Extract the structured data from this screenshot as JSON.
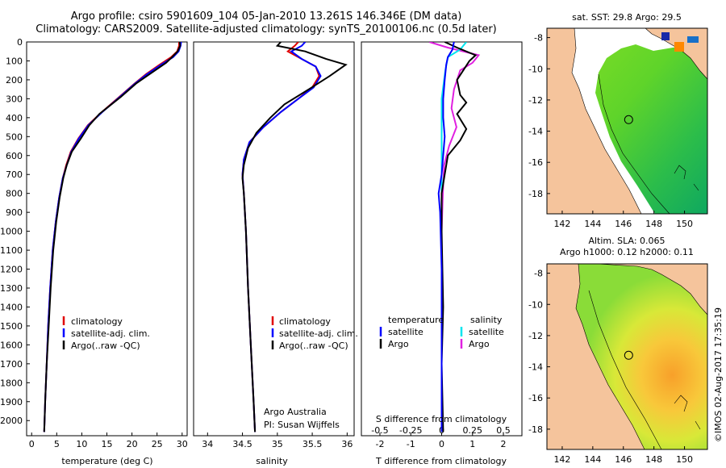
{
  "header": {
    "line1": "Argo profile: csiro 5901609_104 05-Jan-2010 13.261S 146.346E (DM data)",
    "line2": "Climatology: CARS2009. Satellite-adjusted climatology: synTS_20100106.nc (0.5d later)"
  },
  "colors": {
    "clim": "#e00000",
    "sat": "#0000ff",
    "argo": "#000000",
    "sal_sat": "#00e5ee",
    "sal_argo": "#e020e0",
    "land": "#f5c49c"
  },
  "depth_axis": {
    "ticks": [
      0,
      100,
      200,
      300,
      400,
      500,
      600,
      700,
      800,
      900,
      1000,
      1100,
      1200,
      1300,
      1400,
      1500,
      1600,
      1700,
      1800,
      1900,
      2000
    ]
  },
  "chart_data": [
    {
      "type": "line",
      "name": "temperature",
      "xlabel": "temperature (deg C)",
      "xlim": [
        -1,
        31
      ],
      "ylim": [
        0,
        2080
      ],
      "xticks": [
        0,
        5,
        10,
        15,
        20,
        25,
        30
      ],
      "legend": [
        "climatology",
        "satellite-adj. clim.",
        "Argo(..raw -QC)"
      ],
      "series": [
        {
          "name": "climatology",
          "points": [
            [
              29.4,
              0
            ],
            [
              29.4,
              20
            ],
            [
              29.0,
              50
            ],
            [
              27.8,
              80
            ],
            [
              25.5,
              120
            ],
            [
              22.8,
              170
            ],
            [
              20.5,
              220
            ],
            [
              17.5,
              290
            ],
            [
              14.0,
              370
            ],
            [
              11.2,
              440
            ],
            [
              9.3,
              510
            ],
            [
              7.8,
              580
            ],
            [
              6.9,
              650
            ],
            [
              6.2,
              720
            ],
            [
              5.5,
              820
            ],
            [
              4.8,
              950
            ],
            [
              4.2,
              1100
            ],
            [
              3.7,
              1300
            ],
            [
              3.3,
              1500
            ],
            [
              3.0,
              1700
            ],
            [
              2.7,
              1900
            ],
            [
              2.5,
              2060
            ]
          ]
        },
        {
          "name": "satellite-adj. clim.",
          "points": [
            [
              29.8,
              0
            ],
            [
              29.7,
              20
            ],
            [
              29.3,
              50
            ],
            [
              28.2,
              80
            ],
            [
              25.8,
              120
            ],
            [
              23.0,
              170
            ],
            [
              20.6,
              220
            ],
            [
              17.6,
              290
            ],
            [
              14.1,
              370
            ],
            [
              11.3,
              440
            ],
            [
              9.4,
              510
            ],
            [
              7.9,
              580
            ],
            [
              7.0,
              650
            ],
            [
              6.2,
              720
            ],
            [
              5.5,
              820
            ],
            [
              4.8,
              950
            ],
            [
              4.2,
              1100
            ],
            [
              3.7,
              1300
            ],
            [
              3.3,
              1500
            ],
            [
              3.0,
              1700
            ],
            [
              2.7,
              1900
            ],
            [
              2.5,
              2060
            ]
          ]
        },
        {
          "name": "Argo(..raw -QC)",
          "points": [
            [
              29.5,
              0
            ],
            [
              29.6,
              20
            ],
            [
              29.1,
              50
            ],
            [
              28.0,
              80
            ],
            [
              26.8,
              110
            ],
            [
              23.5,
              170
            ],
            [
              20.8,
              220
            ],
            [
              17.8,
              290
            ],
            [
              13.5,
              380
            ],
            [
              11.5,
              440
            ],
            [
              9.8,
              510
            ],
            [
              8.0,
              580
            ],
            [
              7.0,
              650
            ],
            [
              6.3,
              720
            ],
            [
              5.6,
              820
            ],
            [
              4.9,
              950
            ],
            [
              4.3,
              1100
            ],
            [
              3.8,
              1300
            ],
            [
              3.4,
              1500
            ],
            [
              3.0,
              1700
            ],
            [
              2.7,
              1900
            ],
            [
              2.5,
              2060
            ]
          ]
        }
      ]
    },
    {
      "type": "line",
      "name": "salinity",
      "xlabel": "salinity",
      "xlim": [
        33.8,
        36.1
      ],
      "ylim": [
        0,
        2080
      ],
      "xticks": [
        34,
        34.5,
        35,
        35.5,
        36
      ],
      "legend": [
        "climatology",
        "satellite-adj. clim.",
        "Argo(..raw -QC)"
      ],
      "series": [
        {
          "name": "climatology",
          "points": [
            [
              35.3,
              0
            ],
            [
              35.25,
              20
            ],
            [
              35.15,
              50
            ],
            [
              35.35,
              90
            ],
            [
              35.55,
              130
            ],
            [
              35.6,
              180
            ],
            [
              35.5,
              240
            ],
            [
              35.3,
              300
            ],
            [
              35.05,
              370
            ],
            [
              34.8,
              450
            ],
            [
              34.6,
              530
            ],
            [
              34.52,
              620
            ],
            [
              34.5,
              700
            ],
            [
              34.52,
              800
            ],
            [
              34.55,
              1000
            ],
            [
              34.58,
              1300
            ],
            [
              34.62,
              1600
            ],
            [
              34.66,
              1900
            ],
            [
              34.68,
              2060
            ]
          ]
        },
        {
          "name": "satellite-adj. clim.",
          "points": [
            [
              35.4,
              0
            ],
            [
              35.35,
              20
            ],
            [
              35.2,
              50
            ],
            [
              35.35,
              90
            ],
            [
              35.55,
              130
            ],
            [
              35.62,
              180
            ],
            [
              35.52,
              240
            ],
            [
              35.3,
              300
            ],
            [
              35.05,
              370
            ],
            [
              34.8,
              450
            ],
            [
              34.6,
              530
            ],
            [
              34.52,
              620
            ],
            [
              34.5,
              700
            ],
            [
              34.52,
              800
            ],
            [
              34.55,
              1000
            ],
            [
              34.58,
              1300
            ],
            [
              34.62,
              1600
            ],
            [
              34.66,
              1900
            ],
            [
              34.68,
              2060
            ]
          ]
        },
        {
          "name": "Argo(..raw -QC)",
          "points": [
            [
              35.05,
              0
            ],
            [
              35.0,
              20
            ],
            [
              35.4,
              50
            ],
            [
              35.7,
              90
            ],
            [
              35.98,
              120
            ],
            [
              35.75,
              180
            ],
            [
              35.45,
              250
            ],
            [
              35.1,
              330
            ],
            [
              34.9,
              400
            ],
            [
              34.7,
              480
            ],
            [
              34.58,
              560
            ],
            [
              34.52,
              650
            ],
            [
              34.5,
              720
            ],
            [
              34.52,
              800
            ],
            [
              34.55,
              1000
            ],
            [
              34.58,
              1300
            ],
            [
              34.62,
              1600
            ],
            [
              34.66,
              1900
            ],
            [
              34.68,
              2060
            ]
          ]
        }
      ],
      "annotation": {
        "line1": "Argo Australia",
        "line2": "PI: Susan Wijffels"
      }
    },
    {
      "type": "line",
      "name": "differences",
      "xlabel": "T difference from climatology",
      "xlabel_top": "S difference from climatology",
      "t_xlim": [
        -2.6,
        2.6
      ],
      "t_xticks": [
        -2,
        -1,
        0,
        1,
        2
      ],
      "s_ticks": [
        -0.5,
        -0.25,
        0,
        0.25,
        0.5
      ],
      "s_tick_labels": [
        "-0.5",
        "-0.25",
        "0",
        "0.25",
        "0.5"
      ],
      "s_scale": 4,
      "legend": {
        "temperature": "temperature",
        "salinity": "salinity",
        "satellite": "satellite",
        "argo": "Argo"
      },
      "series": [
        {
          "name": "temperature satellite",
          "points": [
            [
              0.4,
              0
            ],
            [
              0.35,
              40
            ],
            [
              0.2,
              80
            ],
            [
              0.15,
              120
            ],
            [
              0.1,
              200
            ],
            [
              0.05,
              300
            ],
            [
              0.05,
              400
            ],
            [
              0.1,
              500
            ],
            [
              0.05,
              600
            ],
            [
              0.0,
              700
            ],
            [
              -0.1,
              800
            ],
            [
              -0.05,
              900
            ],
            [
              0.0,
              1200
            ],
            [
              0.0,
              2060
            ]
          ]
        },
        {
          "name": "temperature Argo",
          "points": [
            [
              0.1,
              0
            ],
            [
              0.5,
              30
            ],
            [
              1.1,
              70
            ],
            [
              0.9,
              100
            ],
            [
              0.7,
              150
            ],
            [
              0.5,
              200
            ],
            [
              0.6,
              280
            ],
            [
              0.8,
              320
            ],
            [
              0.5,
              380
            ],
            [
              0.8,
              460
            ],
            [
              0.6,
              520
            ],
            [
              0.2,
              600
            ],
            [
              0.1,
              700
            ],
            [
              0.0,
              800
            ],
            [
              0.0,
              1000
            ],
            [
              0.05,
              1400
            ],
            [
              0.0,
              1700
            ],
            [
              0.05,
              2060
            ]
          ]
        },
        {
          "name": "salinity satellite",
          "points": [
            [
              0.2,
              0
            ],
            [
              0.15,
              40
            ],
            [
              0.05,
              80
            ],
            [
              0.03,
              150
            ],
            [
              0.0,
              300
            ],
            [
              0.0,
              600
            ],
            [
              0.0,
              1000
            ],
            [
              0.0,
              1500
            ],
            [
              0.0,
              2060
            ]
          ]
        },
        {
          "name": "salinity Argo",
          "points": [
            [
              -0.1,
              0
            ],
            [
              0.05,
              30
            ],
            [
              0.3,
              70
            ],
            [
              0.25,
              110
            ],
            [
              0.15,
              150
            ],
            [
              0.1,
              250
            ],
            [
              0.08,
              350
            ],
            [
              0.12,
              450
            ],
            [
              0.06,
              550
            ],
            [
              0.02,
              650
            ],
            [
              0.01,
              800
            ],
            [
              0.0,
              1000
            ],
            [
              0.0,
              1500
            ],
            [
              0.0,
              2060
            ]
          ]
        }
      ]
    },
    {
      "type": "heatmap",
      "name": "sst-map",
      "title": "sat. SST: 29.8 Argo: 29.5",
      "xticks": [
        142,
        144,
        146,
        148,
        150
      ],
      "yticks": [
        -8,
        -10,
        -12,
        -14,
        -16,
        -18
      ],
      "lon_range": [
        141,
        151.5
      ],
      "lat_range": [
        -19.3,
        -7.4
      ],
      "argo_position": {
        "lon": 146.346,
        "lat": -13.261
      }
    },
    {
      "type": "heatmap",
      "name": "sla-map",
      "title1": "Altim. SLA: 0.065",
      "title2": "Argo h1000: 0.12 h2000: 0.11",
      "xticks": [
        142,
        144,
        146,
        148,
        150
      ],
      "yticks": [
        -8,
        -10,
        -12,
        -14,
        -16,
        -18
      ],
      "lon_range": [
        141,
        151.5
      ],
      "lat_range": [
        -19.3,
        -7.4
      ],
      "argo_position": {
        "lon": 146.346,
        "lat": -13.261
      }
    }
  ],
  "stamp": "©IMOS 02-Aug-2017 17:35:19"
}
